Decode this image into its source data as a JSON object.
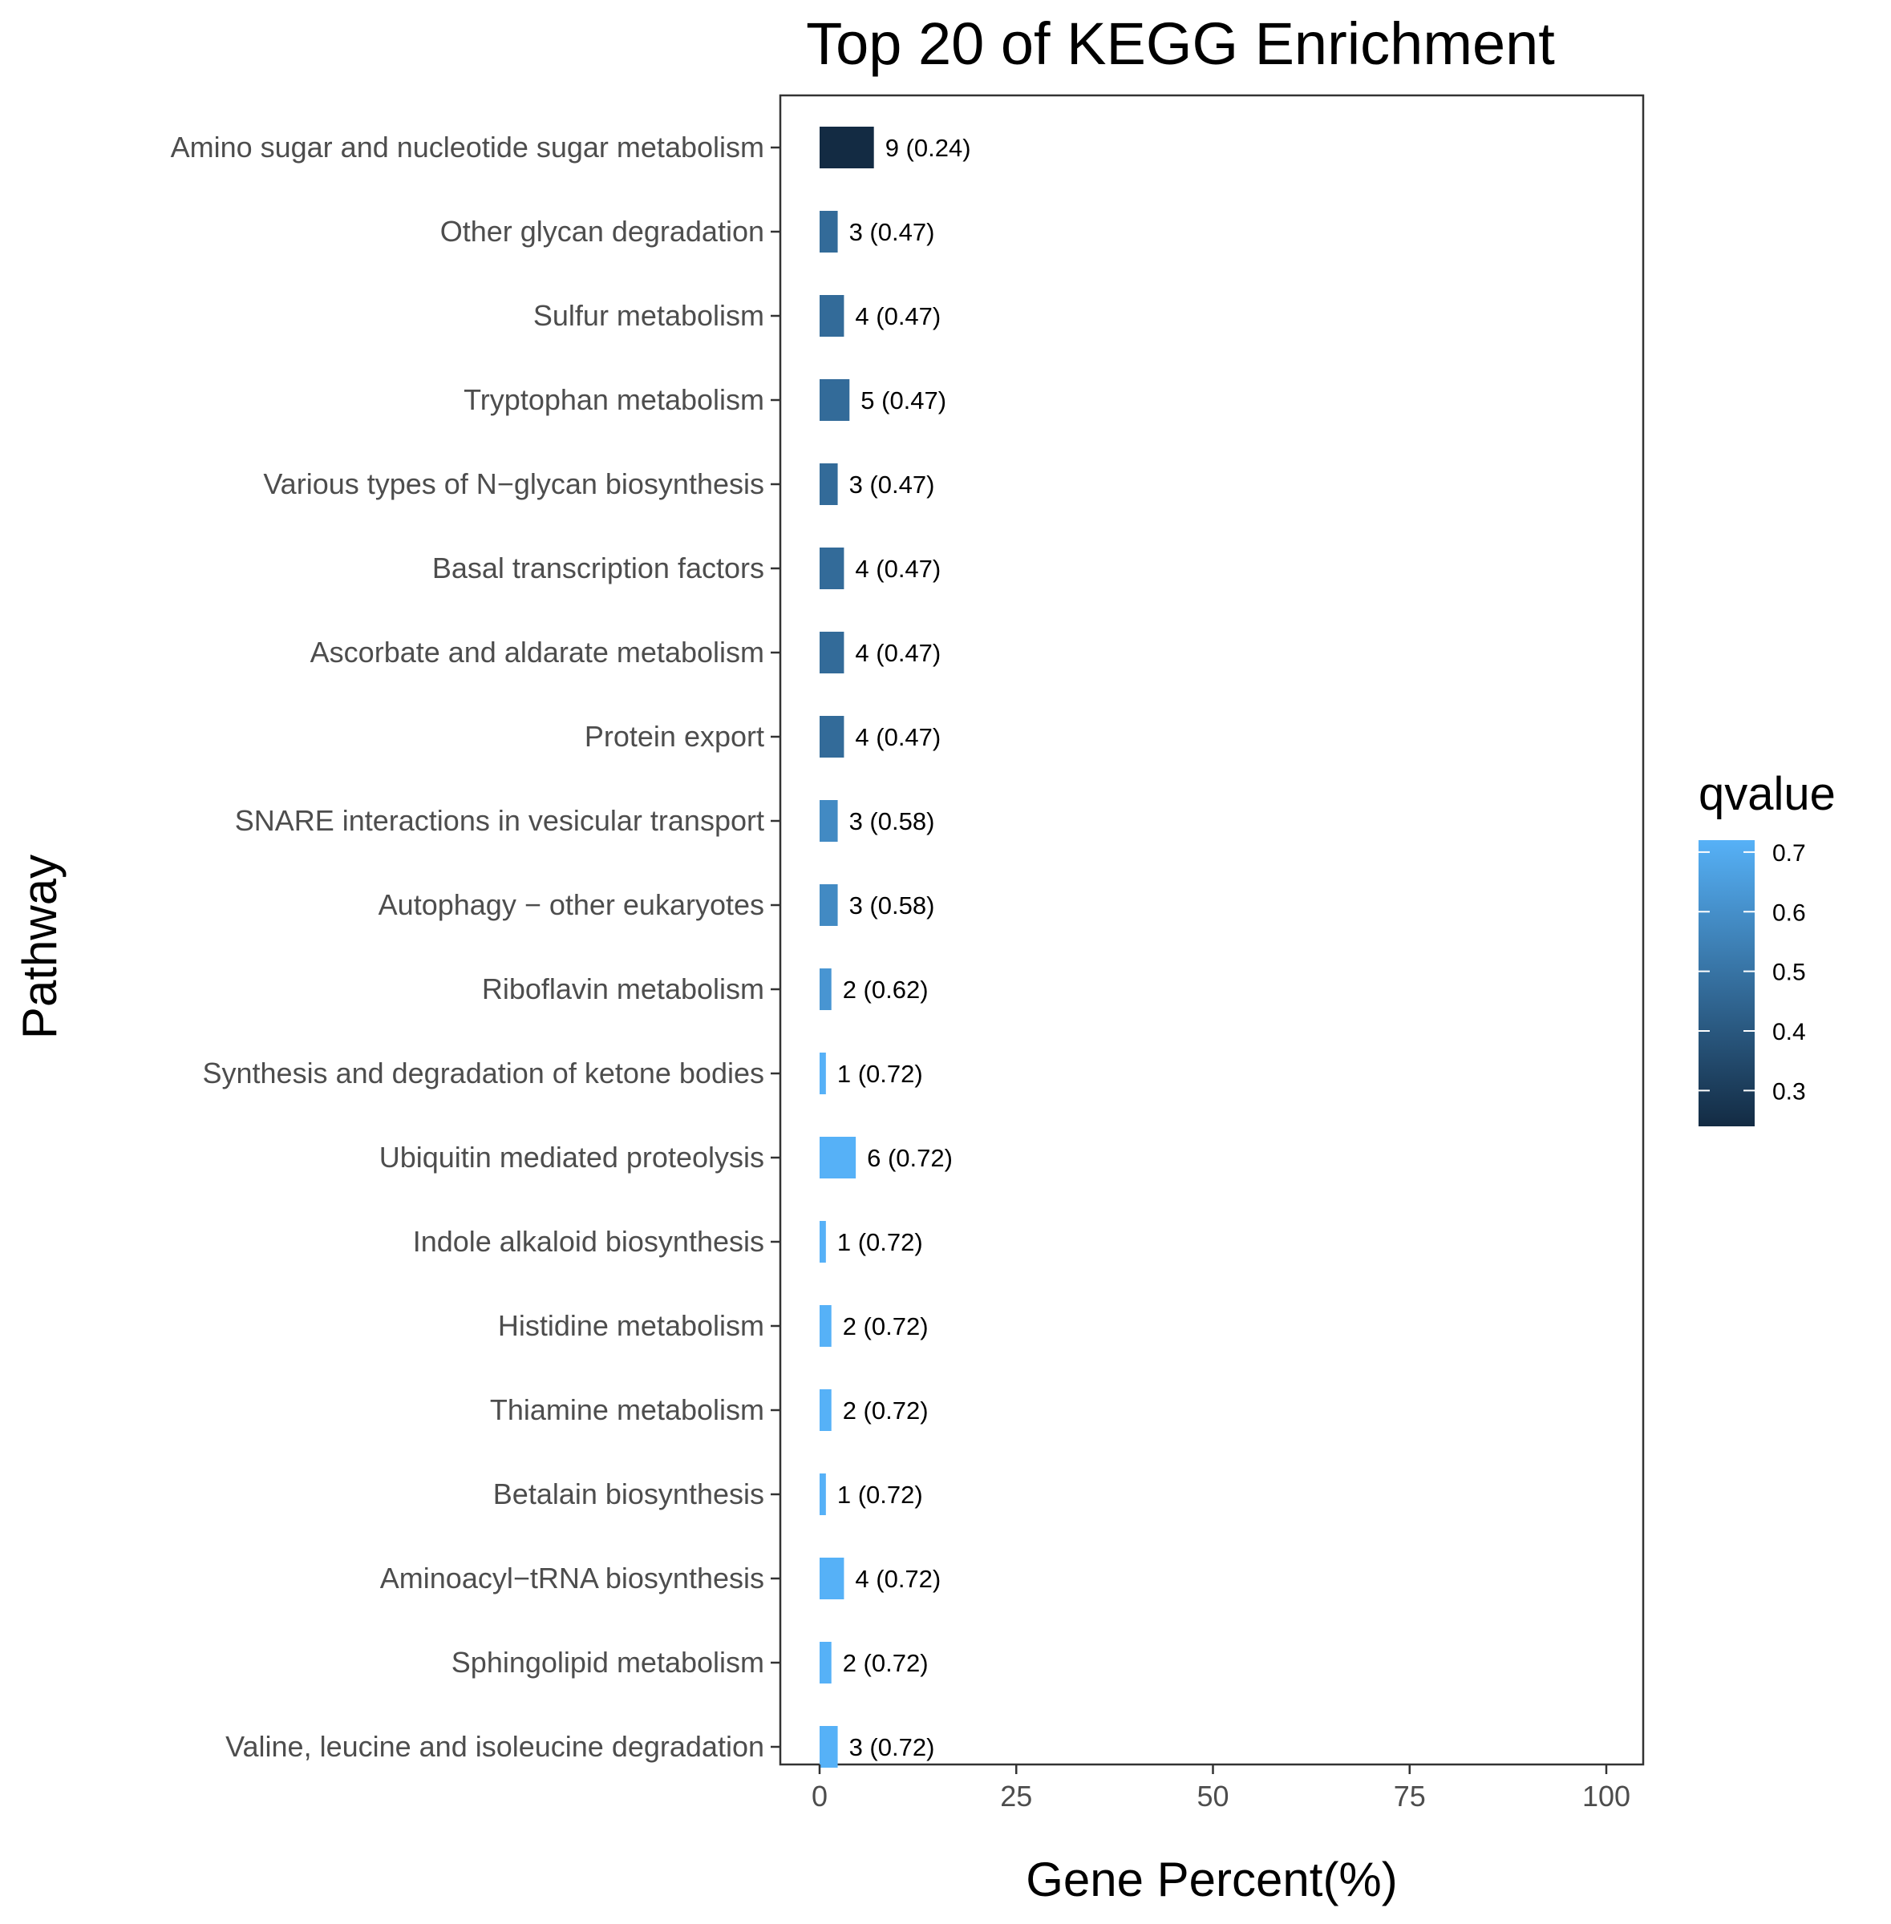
{
  "chart_data": {
    "type": "bar",
    "orientation": "horizontal",
    "title": "Top 20 of KEGG Enrichment",
    "xlabel": "Gene Percent(%)",
    "ylabel": "Pathway",
    "xlim": [
      -5,
      105
    ],
    "xticks": [
      0,
      25,
      50,
      75,
      100
    ],
    "grid": false,
    "legend": {
      "title": "qvalue",
      "position": "right",
      "ticks": [
        0.3,
        0.4,
        0.5,
        0.6,
        0.7
      ],
      "range": [
        0.24,
        0.72
      ],
      "low_color": "#132B43",
      "high_color": "#56B1F7"
    },
    "categories": [
      "Amino sugar and nucleotide sugar metabolism",
      "Other glycan degradation",
      "Sulfur metabolism",
      "Tryptophan metabolism",
      "Various types of N−glycan biosynthesis",
      "Basal transcription factors",
      "Ascorbate and aldarate metabolism",
      "Protein export",
      "SNARE interactions in vesicular transport",
      "Autophagy − other eukaryotes",
      "Riboflavin metabolism",
      "Synthesis and degradation of ketone bodies",
      "Ubiquitin mediated proteolysis",
      "Indole alkaloid biosynthesis",
      "Histidine metabolism",
      "Thiamine metabolism",
      "Betalain biosynthesis",
      "Aminoacyl−tRNA biosynthesis",
      "Sphingolipid metabolism",
      "Valine, leucine and isoleucine degradation"
    ],
    "values": [
      6.9,
      2.3,
      3.1,
      3.8,
      2.3,
      3.1,
      3.1,
      3.1,
      2.3,
      2.3,
      1.5,
      0.8,
      4.6,
      0.8,
      1.5,
      1.5,
      0.8,
      3.1,
      1.5,
      2.3
    ],
    "counts": [
      9,
      3,
      4,
      5,
      3,
      4,
      4,
      4,
      3,
      3,
      2,
      1,
      6,
      1,
      2,
      2,
      1,
      4,
      2,
      3
    ],
    "qvalues": [
      0.24,
      0.47,
      0.47,
      0.47,
      0.47,
      0.47,
      0.47,
      0.47,
      0.58,
      0.58,
      0.62,
      0.72,
      0.72,
      0.72,
      0.72,
      0.72,
      0.72,
      0.72,
      0.72,
      0.72
    ],
    "bar_labels": [
      "9 (0.24)",
      "3 (0.47)",
      "4 (0.47)",
      "5 (0.47)",
      "3 (0.47)",
      "4 (0.47)",
      "4 (0.47)",
      "4 (0.47)",
      "3 (0.58)",
      "3 (0.58)",
      "2 (0.62)",
      "1 (0.72)",
      "6 (0.72)",
      "1 (0.72)",
      "2 (0.72)",
      "2 (0.72)",
      "1 (0.72)",
      "4 (0.72)",
      "2 (0.72)",
      "3 (0.72)"
    ]
  }
}
